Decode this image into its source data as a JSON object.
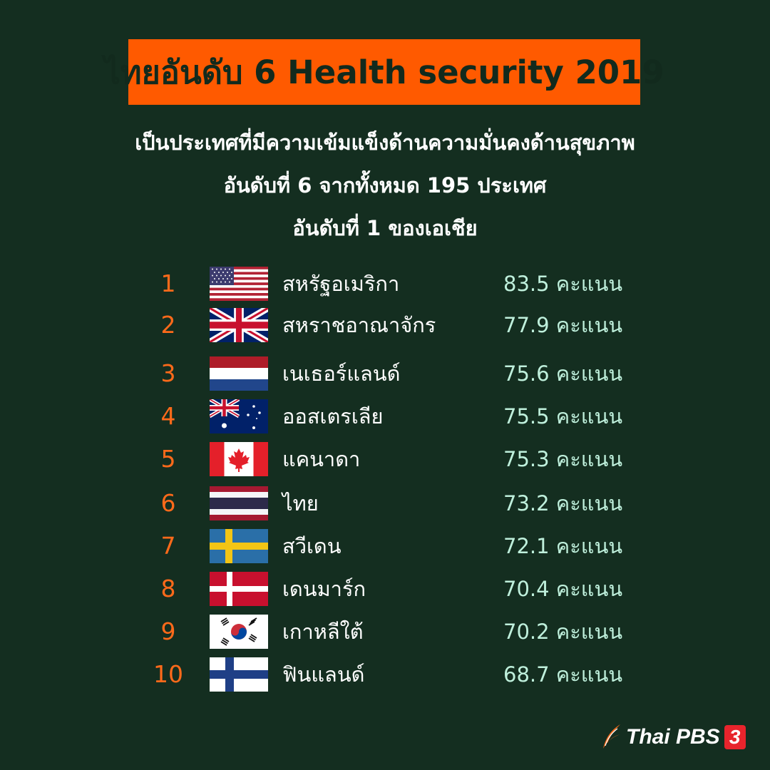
{
  "title": "ไทยอันดับ 6 Health security 2019",
  "subtitle_lines": [
    "เป็นประเทศที่มีความเข้มแข็งด้านความมั่นคงด้านสุขภาพ",
    "อันดับที่ 6 จากทั้งหมด 195 ประเทศ",
    "อันดับที่ 1 ของเอเชีย"
  ],
  "ranking": [
    {
      "rank": "1",
      "country": "สหรัฐอเมริกา",
      "score": "83.5 คะแนน",
      "flag": "usa-flag-icon"
    },
    {
      "rank": "2",
      "country": "สหราชอาณาจักร",
      "score": "77.9 คะแนน",
      "flag": "uk-flag-icon"
    },
    {
      "rank": "3",
      "country": "เนเธอร์แลนด์",
      "score": "75.6 คะแนน",
      "flag": "netherlands-flag-icon"
    },
    {
      "rank": "4",
      "country": "ออสเตรเลีย",
      "score": "75.5 คะแนน",
      "flag": "australia-flag-icon"
    },
    {
      "rank": "5",
      "country": "แคนาดา",
      "score": "75.3 คะแนน",
      "flag": "canada-flag-icon"
    },
    {
      "rank": "6",
      "country": "ไทย",
      "score": "73.2 คะแนน",
      "flag": "thailand-flag-icon"
    },
    {
      "rank": "7",
      "country": "สวีเดน",
      "score": "72.1 คะแนน",
      "flag": "sweden-flag-icon"
    },
    {
      "rank": "8",
      "country": "เดนมาร์ก",
      "score": "70.4 คะแนน",
      "flag": "denmark-flag-icon"
    },
    {
      "rank": "9",
      "country": "เกาหลีใต้",
      "score": "70.2 คะแนน",
      "flag": "south-korea-flag-icon"
    },
    {
      "rank": "10",
      "country": "ฟินแลนด์",
      "score": "68.7 คะแนน",
      "flag": "finland-flag-icon"
    }
  ],
  "logo": {
    "text": "Thai PBS",
    "badge": "3"
  },
  "colors": {
    "background": "#142e20",
    "title_box": "#ff5a00",
    "rank": "#ff6a1a",
    "score": "#bff0dc"
  }
}
